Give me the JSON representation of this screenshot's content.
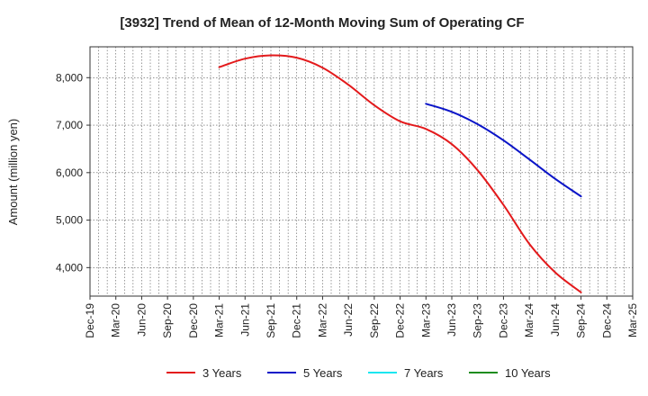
{
  "chart_data": {
    "type": "line",
    "title": "[3932]  Trend of Mean of 12-Month Moving Sum of Operating CF",
    "xlabel": "",
    "ylabel": "Amount (million yen)",
    "ylim": [
      3400,
      8650
    ],
    "yticks": [
      4000,
      5000,
      6000,
      7000,
      8000
    ],
    "ytick_labels": [
      "4,000",
      "5,000",
      "6,000",
      "7,000",
      "8,000"
    ],
    "x_categories": [
      "Dec-19",
      "Mar-20",
      "Jun-20",
      "Sep-20",
      "Dec-20",
      "Mar-21",
      "Jun-21",
      "Sep-21",
      "Dec-21",
      "Mar-22",
      "Jun-22",
      "Sep-22",
      "Dec-22",
      "Mar-23",
      "Jun-23",
      "Sep-23",
      "Dec-23",
      "Mar-24",
      "Jun-24",
      "Sep-24",
      "Dec-24",
      "Mar-25"
    ],
    "grid": true,
    "legend_position": "bottom",
    "series": [
      {
        "name": "3 Years",
        "color": "#e31a1c",
        "points": [
          {
            "x": "Mar-21",
            "y": 8220
          },
          {
            "x": "Jun-21",
            "y": 8400
          },
          {
            "x": "Sep-21",
            "y": 8470
          },
          {
            "x": "Dec-21",
            "y": 8420
          },
          {
            "x": "Mar-22",
            "y": 8210
          },
          {
            "x": "Jun-22",
            "y": 7850
          },
          {
            "x": "Sep-22",
            "y": 7420
          },
          {
            "x": "Dec-22",
            "y": 7080
          },
          {
            "x": "Mar-23",
            "y": 6920
          },
          {
            "x": "Jun-23",
            "y": 6600
          },
          {
            "x": "Sep-23",
            "y": 6050
          },
          {
            "x": "Dec-23",
            "y": 5320
          },
          {
            "x": "Mar-24",
            "y": 4500
          },
          {
            "x": "Jun-24",
            "y": 3900
          },
          {
            "x": "Sep-24",
            "y": 3480
          }
        ]
      },
      {
        "name": "5 Years",
        "color": "#0a14c8",
        "points": [
          {
            "x": "Mar-23",
            "y": 7450
          },
          {
            "x": "Jun-23",
            "y": 7280
          },
          {
            "x": "Sep-23",
            "y": 7020
          },
          {
            "x": "Dec-23",
            "y": 6680
          },
          {
            "x": "Mar-24",
            "y": 6280
          },
          {
            "x": "Jun-24",
            "y": 5870
          },
          {
            "x": "Sep-24",
            "y": 5500
          }
        ]
      },
      {
        "name": "7 Years",
        "color": "#19e6f0",
        "points": []
      },
      {
        "name": "10 Years",
        "color": "#1e8c1e",
        "points": []
      }
    ]
  }
}
